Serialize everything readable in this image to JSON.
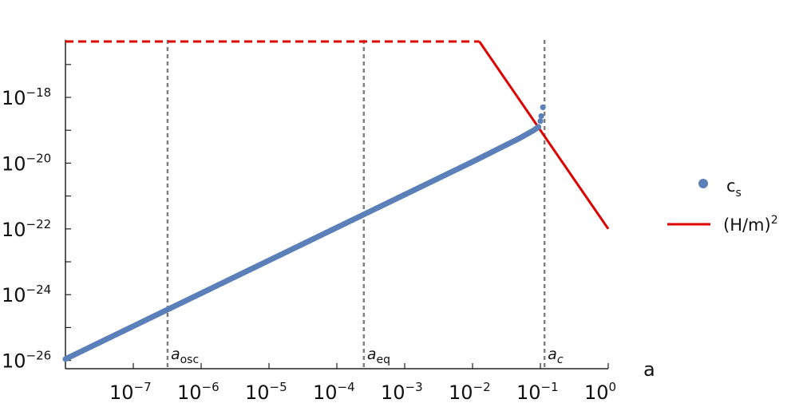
{
  "chart_data": {
    "type": "scatter",
    "xlabel": "a",
    "ylabel": "",
    "xscale": "log",
    "yscale": "log",
    "xlim": [
      1e-08,
      1
    ],
    "ylim": [
      5.6e-27,
      5.6e-17
    ],
    "grid": false,
    "legend_position": "right",
    "x_ticks": [
      {
        "base": "10",
        "exp": "−7",
        "v": -7
      },
      {
        "base": "10",
        "exp": "−6",
        "v": -6
      },
      {
        "base": "10",
        "exp": "−5",
        "v": -5
      },
      {
        "base": "10",
        "exp": "−4",
        "v": -4
      },
      {
        "base": "10",
        "exp": "−3",
        "v": -3
      },
      {
        "base": "10",
        "exp": "−2",
        "v": -2
      },
      {
        "base": "10",
        "exp": "−1",
        "v": -1
      },
      {
        "base": "10",
        "exp": "0",
        "v": 0
      }
    ],
    "y_ticks": [
      {
        "base": "10",
        "exp": "−18",
        "v": -18
      },
      {
        "base": "10",
        "exp": "−20",
        "v": -20
      },
      {
        "base": "10",
        "exp": "−22",
        "v": -22
      },
      {
        "base": "10",
        "exp": "−24",
        "v": -24
      },
      {
        "base": "10",
        "exp": "−26",
        "v": -26
      }
    ],
    "series": [
      {
        "name": "c",
        "name_sub": "s",
        "style": "points",
        "color": "#5b80b9",
        "points": [
          [
            1e-08,
            1.1e-26
          ],
          [
            1e-06,
            1.1e-24
          ],
          [
            0.0001,
            1.1e-22
          ],
          [
            0.01,
            1.1e-20
          ],
          [
            0.05,
            5.8e-20
          ],
          [
            0.08,
            1e-19
          ],
          [
            0.0935,
            1.26e-19
          ],
          [
            0.1,
            1.9e-19
          ],
          [
            0.103,
            2.7e-19
          ],
          [
            0.109,
            5e-19
          ]
        ]
      },
      {
        "name": "(H/m)",
        "name_sup": "2",
        "style": "line",
        "color": "#dd0000",
        "points": [
          [
            0.0126,
            5e-17
          ],
          [
            1,
            1e-22
          ]
        ],
        "dashed_points": [
          [
            1e-08,
            5e-17
          ],
          [
            0.0126,
            5e-17
          ]
        ]
      }
    ],
    "vlines": [
      {
        "x": 3.2e-07,
        "label": "a",
        "sub": "osc",
        "color": "#808080"
      },
      {
        "x": 0.00025,
        "label": "a",
        "sub": "eq",
        "color": "#808080"
      },
      {
        "x": 0.115,
        "label": "a",
        "sub": "c",
        "color": "#808080"
      }
    ]
  }
}
